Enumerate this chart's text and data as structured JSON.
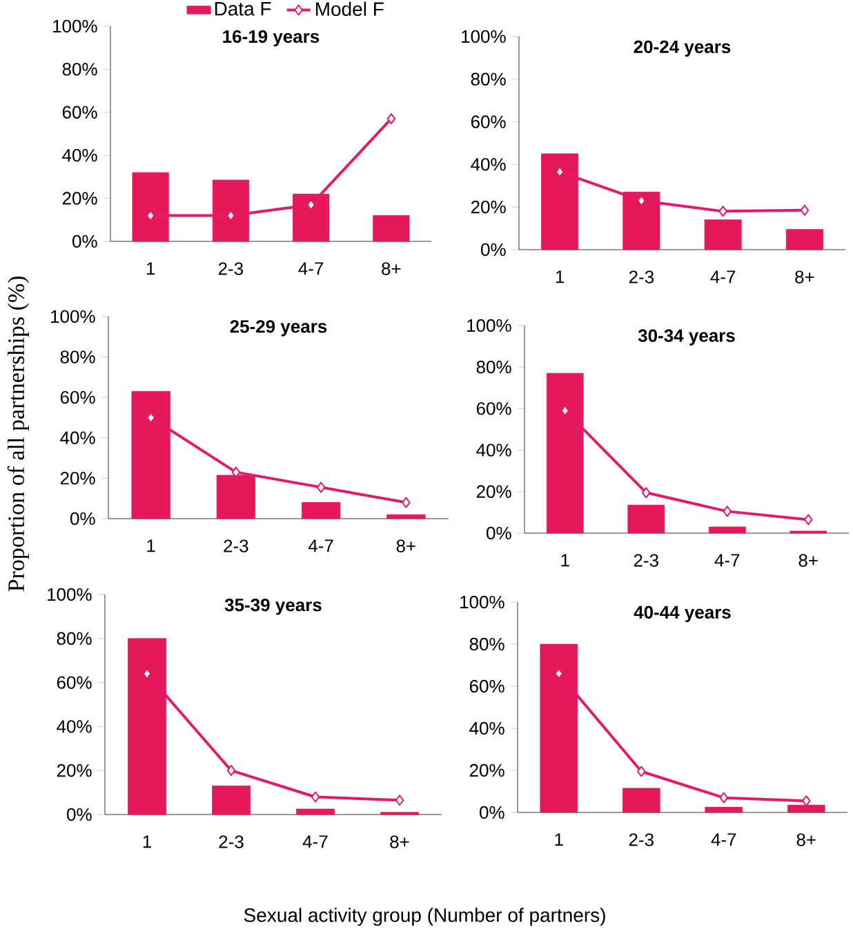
{
  "chart_data": [
    {
      "type": "bar",
      "title": "16-19 years",
      "categories": [
        "1",
        "2-3",
        "4-7",
        "8+"
      ],
      "legend": "top",
      "ylim": [
        0,
        100
      ],
      "yticks": [
        {
          "value": 0,
          "label": "0%"
        },
        {
          "value": 20,
          "label": "20%"
        },
        {
          "value": 40,
          "label": "40%"
        },
        {
          "value": 60,
          "label": "60%"
        },
        {
          "value": 80,
          "label": "80%"
        },
        {
          "value": 100,
          "label": "100%"
        }
      ],
      "series": [
        {
          "name": "Data F",
          "color": "#e5185a",
          "values": [
            32,
            28.5,
            22,
            12
          ]
        },
        {
          "name": "Model F",
          "type": "line",
          "marker": "diamond",
          "color": "#e5196a",
          "values": [
            12,
            12,
            17,
            57
          ]
        }
      ]
    },
    {
      "type": "bar",
      "title": "20-24 years",
      "categories": [
        "1",
        "2-3",
        "4-7",
        "8+"
      ],
      "ylim": [
        0,
        100
      ],
      "yticks": [
        {
          "value": 0,
          "label": "0%"
        },
        {
          "value": 20,
          "label": "20%"
        },
        {
          "value": 40,
          "label": "40%"
        },
        {
          "value": 60,
          "label": "60%"
        },
        {
          "value": 80,
          "label": "80%"
        },
        {
          "value": 100,
          "label": "100%"
        }
      ],
      "series": [
        {
          "color": "#e5185a",
          "values": [
            45,
            27,
            14,
            9.5
          ]
        },
        {
          "type": "line",
          "marker": "diamond",
          "color": "#e5196a",
          "values": [
            36.5,
            23,
            18,
            18.5
          ]
        }
      ]
    },
    {
      "type": "bar",
      "title": "25-29 years",
      "ylabel": "Proportion of all partnerships (%)",
      "categories": [
        "1",
        "2-3",
        "4-7",
        "8+"
      ],
      "ylim": [
        0,
        100
      ],
      "yticks": [
        {
          "value": 0,
          "label": "0%"
        },
        {
          "value": 20,
          "label": "20%"
        },
        {
          "value": 40,
          "label": "40%"
        },
        {
          "value": 60,
          "label": "60%"
        },
        {
          "value": 80,
          "label": "80%"
        },
        {
          "value": 100,
          "label": "100%"
        }
      ],
      "series": [
        {
          "color": "#e5185a",
          "values": [
            63,
            21.5,
            8,
            2
          ]
        },
        {
          "type": "line",
          "marker": "diamond",
          "color": "#e5196a",
          "values": [
            50,
            23,
            15.5,
            8
          ]
        }
      ]
    },
    {
      "type": "bar",
      "title": "30-34 years",
      "categories": [
        "1",
        "2-3",
        "4-7",
        "8+"
      ],
      "ylim": [
        0,
        100
      ],
      "yticks": [
        {
          "value": 0,
          "label": "0%"
        },
        {
          "value": 20,
          "label": "20%"
        },
        {
          "value": 40,
          "label": "40%"
        },
        {
          "value": 60,
          "label": "60%"
        },
        {
          "value": 80,
          "label": "80%"
        },
        {
          "value": 100,
          "label": "100%"
        }
      ],
      "series": [
        {
          "color": "#e5185a",
          "values": [
            77,
            13.5,
            3,
            1
          ]
        },
        {
          "type": "line",
          "marker": "diamond",
          "color": "#e5196a",
          "values": [
            59,
            19.5,
            10.5,
            6.5
          ]
        }
      ]
    },
    {
      "type": "bar",
      "title": "35-39 years",
      "xlabel": "Sexual activity group (Number of partners)",
      "categories": [
        "1",
        "2-3",
        "4-7",
        "8+"
      ],
      "ylim": [
        0,
        100
      ],
      "yticks": [
        {
          "value": 0,
          "label": "0%"
        },
        {
          "value": 20,
          "label": "20%"
        },
        {
          "value": 40,
          "label": "40%"
        },
        {
          "value": 60,
          "label": "60%"
        },
        {
          "value": 80,
          "label": "80%"
        },
        {
          "value": 100,
          "label": "100%"
        }
      ],
      "series": [
        {
          "color": "#e5185a",
          "values": [
            80,
            13,
            2.5,
            1
          ]
        },
        {
          "type": "line",
          "marker": "diamond",
          "color": "#e5196a",
          "values": [
            64,
            20,
            8,
            6.5
          ]
        }
      ]
    },
    {
      "type": "bar",
      "title": "40-44 years",
      "categories": [
        "1",
        "2-3",
        "4-7",
        "8+"
      ],
      "ylim": [
        0,
        100
      ],
      "yticks": [
        {
          "value": 0,
          "label": "0%"
        },
        {
          "value": 20,
          "label": "20%"
        },
        {
          "value": 40,
          "label": "40%"
        },
        {
          "value": 60,
          "label": "60%"
        },
        {
          "value": 80,
          "label": "80%"
        },
        {
          "value": 100,
          "label": "100%"
        }
      ],
      "series": [
        {
          "color": "#e5185a",
          "values": [
            80,
            11.5,
            2.5,
            3.5
          ]
        },
        {
          "type": "line",
          "marker": "diamond",
          "color": "#e5196a",
          "values": [
            66,
            19.5,
            7,
            5.5
          ]
        }
      ]
    }
  ]
}
